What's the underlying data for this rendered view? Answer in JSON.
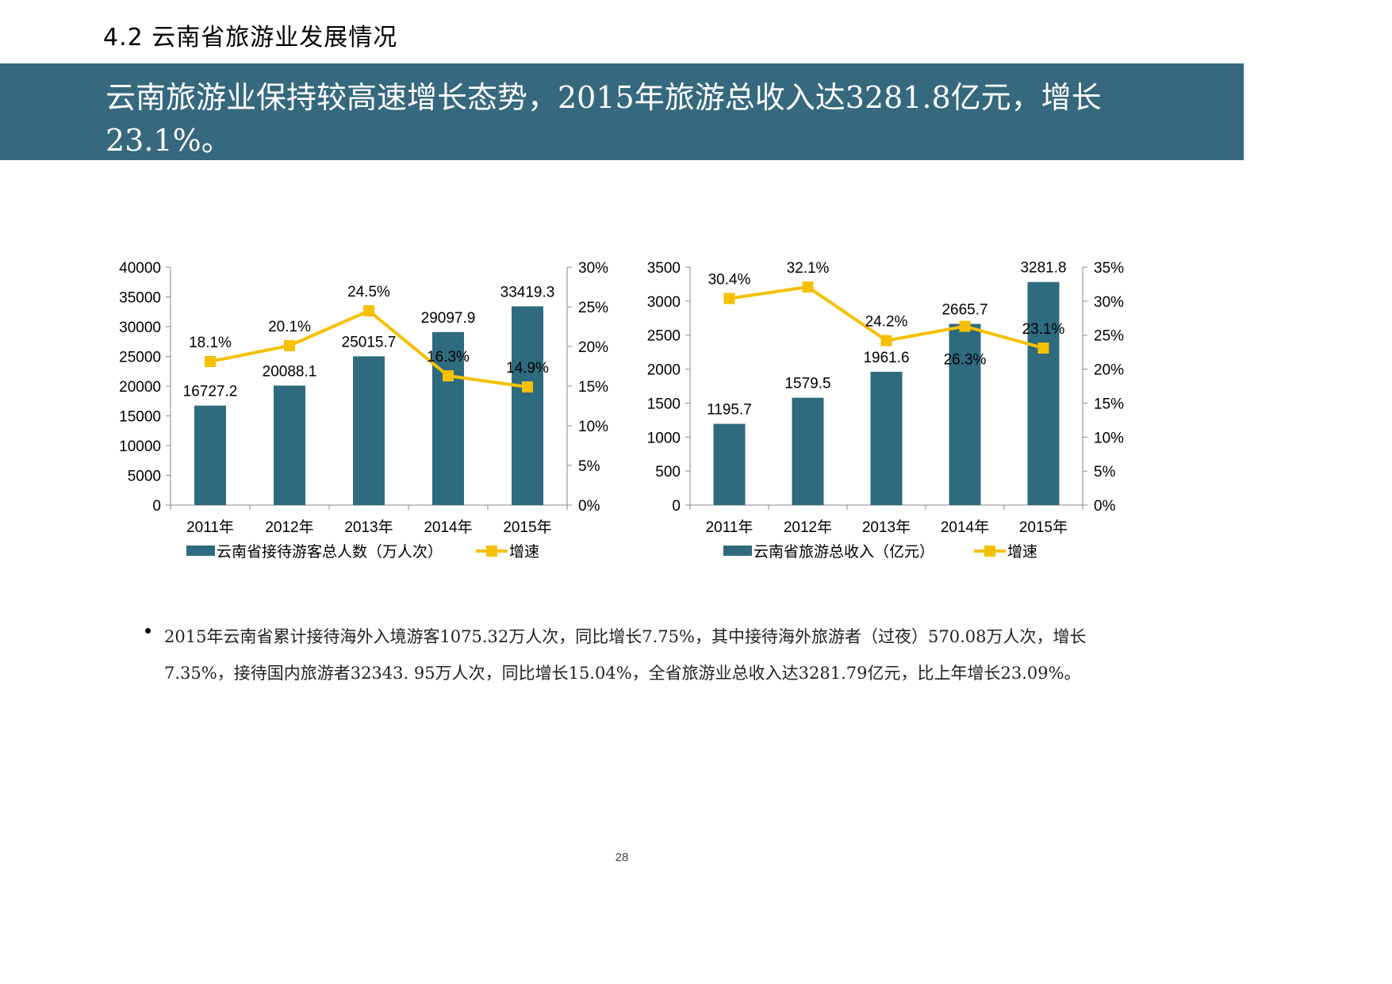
{
  "page": {
    "section_title": "4.2 云南省旅游业发展情况",
    "banner_text": "云南旅游业保持较高速增长态势，2015年旅游总收入达3281.8亿元，增长23.1%。",
    "paragraph": "2015年云南省累计接待海外入境游客1075.32万人次，同比增长7.75%，其中接待海外旅游者（过夜）570.08万人次，增长7.35%，接待国内旅游者32343. 95万人次，同比增长15.04%，全省旅游业总收入达3281.79亿元，比上年增长23.09%。",
    "page_number": "28"
  },
  "colors": {
    "banner": "#36687e",
    "bar": "#2e6b7e",
    "line": "#f5c000"
  },
  "chart_data": [
    {
      "type": "bar",
      "categories": [
        "2011年",
        "2012年",
        "2013年",
        "2014年",
        "2015年"
      ],
      "series": [
        {
          "name": "云南省接待游客总人数（万人次）",
          "type": "bar",
          "axis": "left",
          "values": [
            16727.2,
            20088.1,
            25015.7,
            29097.9,
            33419.3
          ],
          "labels": [
            "16727.2",
            "20088.1",
            "25015.7",
            "29097.9",
            "33419.3"
          ]
        },
        {
          "name": "增速",
          "type": "line",
          "axis": "right",
          "values": [
            18.1,
            20.1,
            24.5,
            16.3,
            14.9
          ],
          "labels": [
            "18.1%",
            "20.1%",
            "24.5%",
            "16.3%",
            "14.9%"
          ]
        }
      ],
      "ylim": [
        0,
        40000
      ],
      "y_ticks": [
        "0",
        "5000",
        "10000",
        "15000",
        "20000",
        "25000",
        "30000",
        "35000",
        "40000"
      ],
      "y2lim": [
        0,
        30
      ],
      "y2_ticks": [
        "0%",
        "5%",
        "10%",
        "15%",
        "20%",
        "25%",
        "30%"
      ],
      "legend_position": "bottom",
      "grid": false
    },
    {
      "type": "bar",
      "categories": [
        "2011年",
        "2012年",
        "2013年",
        "2014年",
        "2015年"
      ],
      "series": [
        {
          "name": "云南省旅游总收入（亿元）",
          "type": "bar",
          "axis": "left",
          "values": [
            1195.7,
            1579.5,
            1961.6,
            2665.7,
            3281.8
          ],
          "labels": [
            "1195.7",
            "1579.5",
            "1961.6",
            "2665.7",
            "3281.8"
          ]
        },
        {
          "name": "增速",
          "type": "line",
          "axis": "right",
          "values": [
            30.4,
            32.1,
            24.2,
            26.3,
            23.1
          ],
          "labels": [
            "30.4%",
            "32.1%",
            "24.2%",
            "26.3%",
            "23.1%"
          ]
        }
      ],
      "ylim": [
        0,
        3500
      ],
      "y_ticks": [
        "0",
        "500",
        "1000",
        "1500",
        "2000",
        "2500",
        "3000",
        "3500"
      ],
      "y2lim": [
        0,
        35
      ],
      "y2_ticks": [
        "0%",
        "5%",
        "10%",
        "15%",
        "20%",
        "25%",
        "30%",
        "35%"
      ],
      "legend_position": "bottom",
      "grid": false
    }
  ]
}
